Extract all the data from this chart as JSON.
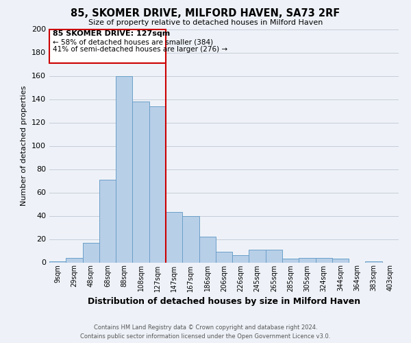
{
  "title": "85, SKOMER DRIVE, MILFORD HAVEN, SA73 2RF",
  "subtitle": "Size of property relative to detached houses in Milford Haven",
  "xlabel": "Distribution of detached houses by size in Milford Haven",
  "ylabel": "Number of detached properties",
  "bar_labels": [
    "9sqm",
    "29sqm",
    "48sqm",
    "68sqm",
    "88sqm",
    "108sqm",
    "127sqm",
    "147sqm",
    "167sqm",
    "186sqm",
    "206sqm",
    "226sqm",
    "245sqm",
    "265sqm",
    "285sqm",
    "305sqm",
    "324sqm",
    "344sqm",
    "364sqm",
    "383sqm",
    "403sqm"
  ],
  "bar_values": [
    1,
    4,
    17,
    71,
    160,
    138,
    134,
    43,
    40,
    22,
    9,
    6,
    11,
    11,
    3,
    4,
    4,
    3,
    0,
    1,
    0
  ],
  "bar_color": "#b8cfe8",
  "bar_edge_color": "#6a9fc8",
  "highlight_bar_index": 6,
  "vline_x": 6.5,
  "vline_color": "#cc0000",
  "ylim": [
    0,
    200
  ],
  "yticks": [
    0,
    20,
    40,
    60,
    80,
    100,
    120,
    140,
    160,
    180,
    200
  ],
  "ann_line1": "85 SKOMER DRIVE: 127sqm",
  "ann_line2": "← 58% of detached houses are smaller (384)",
  "ann_line3": "41% of semi-detached houses are larger (276) →",
  "footer_line1": "Contains HM Land Registry data © Crown copyright and database right 2024.",
  "footer_line2": "Contains public sector information licensed under the Open Government Licence v3.0.",
  "background_color": "#eef2f8",
  "plot_bg_color": "#eef2f8",
  "grid_color": "#c5ccd8"
}
